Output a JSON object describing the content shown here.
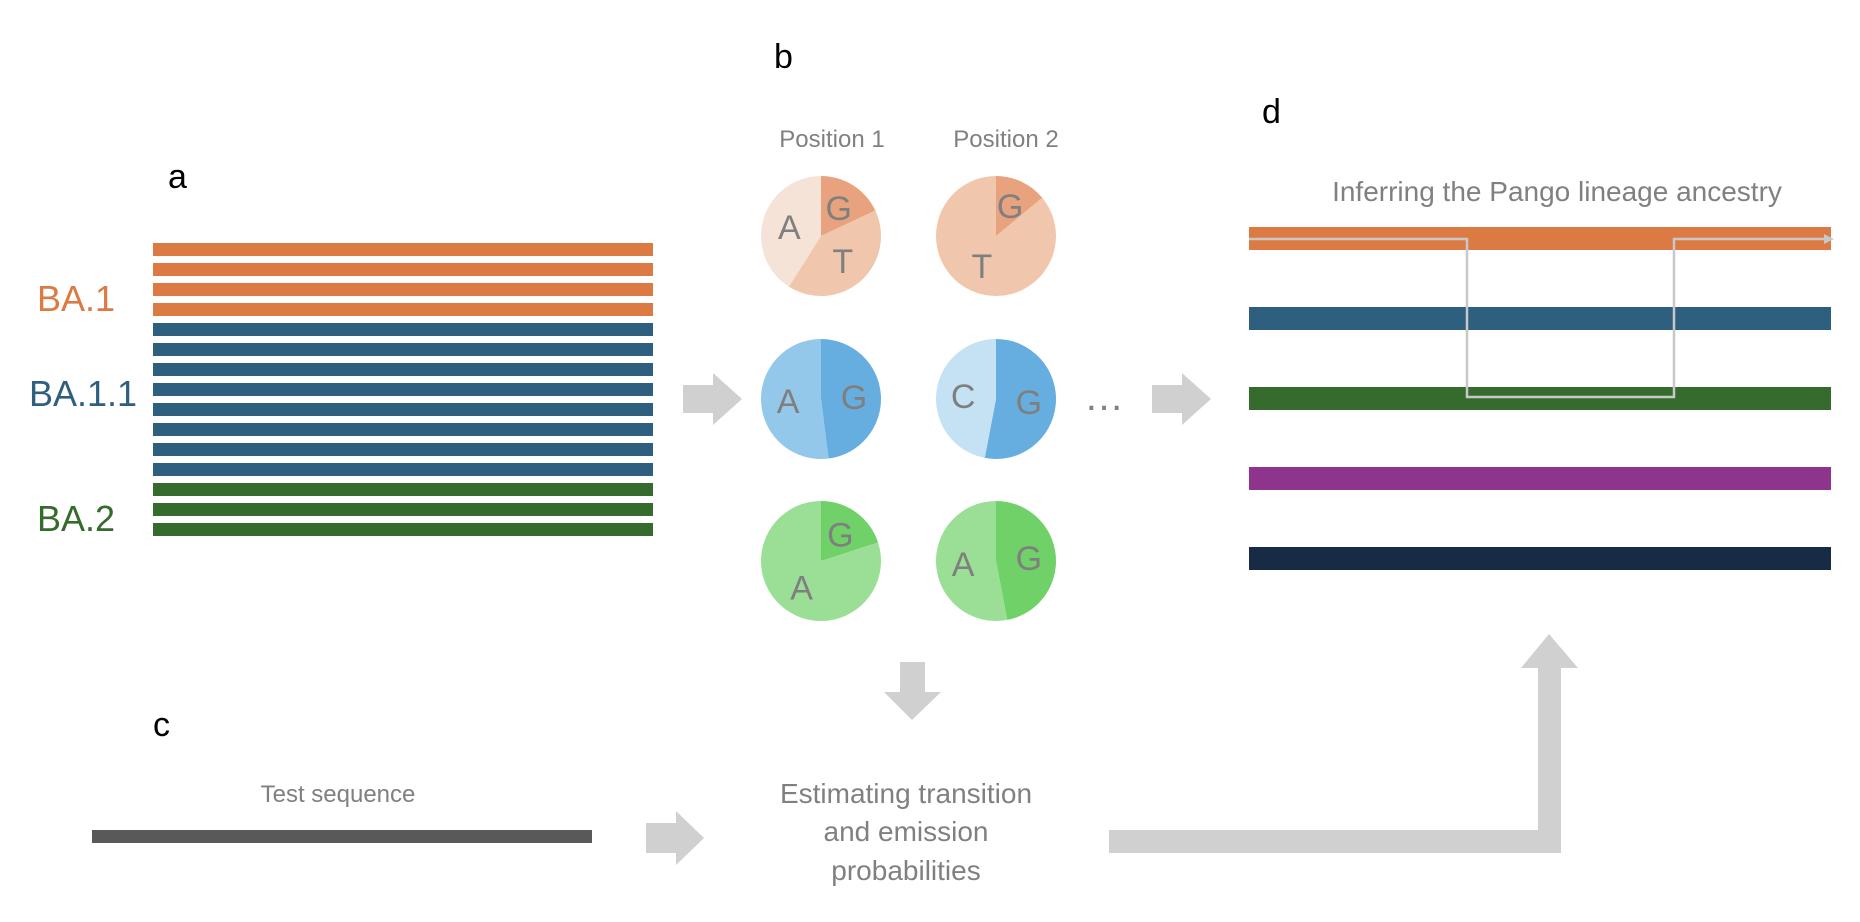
{
  "panels": {
    "a": "a",
    "b": "b",
    "c": "c",
    "d": "d"
  },
  "colors": {
    "ba1": "#DB7A43",
    "ba11": "#2F5F7F",
    "ba2": "#356B2C",
    "purple": "#8E348C",
    "navy": "#172B45",
    "arrow": "#D0D0D0",
    "test_seq": "#595959",
    "path_line": "#C8C8C8"
  },
  "panel_a": {
    "lineages": [
      {
        "label": "BA.1",
        "color": "#DB7A43",
        "sequences": 4
      },
      {
        "label": "BA.1.1",
        "color": "#2F5F7F",
        "sequences": 8
      },
      {
        "label": "BA.2",
        "color": "#356B2C",
        "sequences": 3
      }
    ]
  },
  "panel_b": {
    "positions": [
      "Position 1",
      "Position 2"
    ],
    "ellipsis": "…",
    "pies": [
      {
        "row": 0,
        "col": 0,
        "base": "#F0C6AC",
        "slices": [
          {
            "label": "G",
            "fraction": 0.18,
            "color": "#E9A27E"
          },
          {
            "label": "T",
            "fraction": 0.41,
            "color": "#F0C6AC"
          },
          {
            "label": "A",
            "fraction": 0.41,
            "color": "#F6E3D7"
          }
        ]
      },
      {
        "row": 0,
        "col": 1,
        "base": "#F0C6AC",
        "slices": [
          {
            "label": "G",
            "fraction": 0.14,
            "color": "#E9A27E"
          },
          {
            "label": "T",
            "fraction": 0.86,
            "color": "#F0C6AC"
          }
        ]
      },
      {
        "row": 1,
        "col": 0,
        "base": "#94C8EA",
        "slices": [
          {
            "label": "G",
            "fraction": 0.48,
            "color": "#66AEDF"
          },
          {
            "label": "A",
            "fraction": 0.52,
            "color": "#94C8EA"
          }
        ]
      },
      {
        "row": 1,
        "col": 1,
        "base": "#C5E2F4",
        "slices": [
          {
            "label": "G",
            "fraction": 0.53,
            "color": "#66AEDF"
          },
          {
            "label": "C",
            "fraction": 0.47,
            "color": "#C5E2F4"
          }
        ]
      },
      {
        "row": 2,
        "col": 0,
        "base": "#9ADF95",
        "slices": [
          {
            "label": "G",
            "fraction": 0.2,
            "color": "#6FD168"
          },
          {
            "label": "A",
            "fraction": 0.8,
            "color": "#9ADF95"
          }
        ]
      },
      {
        "row": 2,
        "col": 1,
        "base": "#9ADF95",
        "slices": [
          {
            "label": "G",
            "fraction": 0.47,
            "color": "#6FD168"
          },
          {
            "label": "A",
            "fraction": 0.53,
            "color": "#9ADF95"
          }
        ]
      }
    ]
  },
  "panel_c": {
    "test_sequence_label": "Test sequence",
    "estimating_lines": [
      "Estimating transition",
      "and emission",
      "probabilities"
    ]
  },
  "panel_d": {
    "title": "Inferring the Pango lineage ancestry",
    "bars": [
      "#DB7A43",
      "#2F5F7F",
      "#356B2C",
      "#8E348C",
      "#172B45"
    ]
  }
}
